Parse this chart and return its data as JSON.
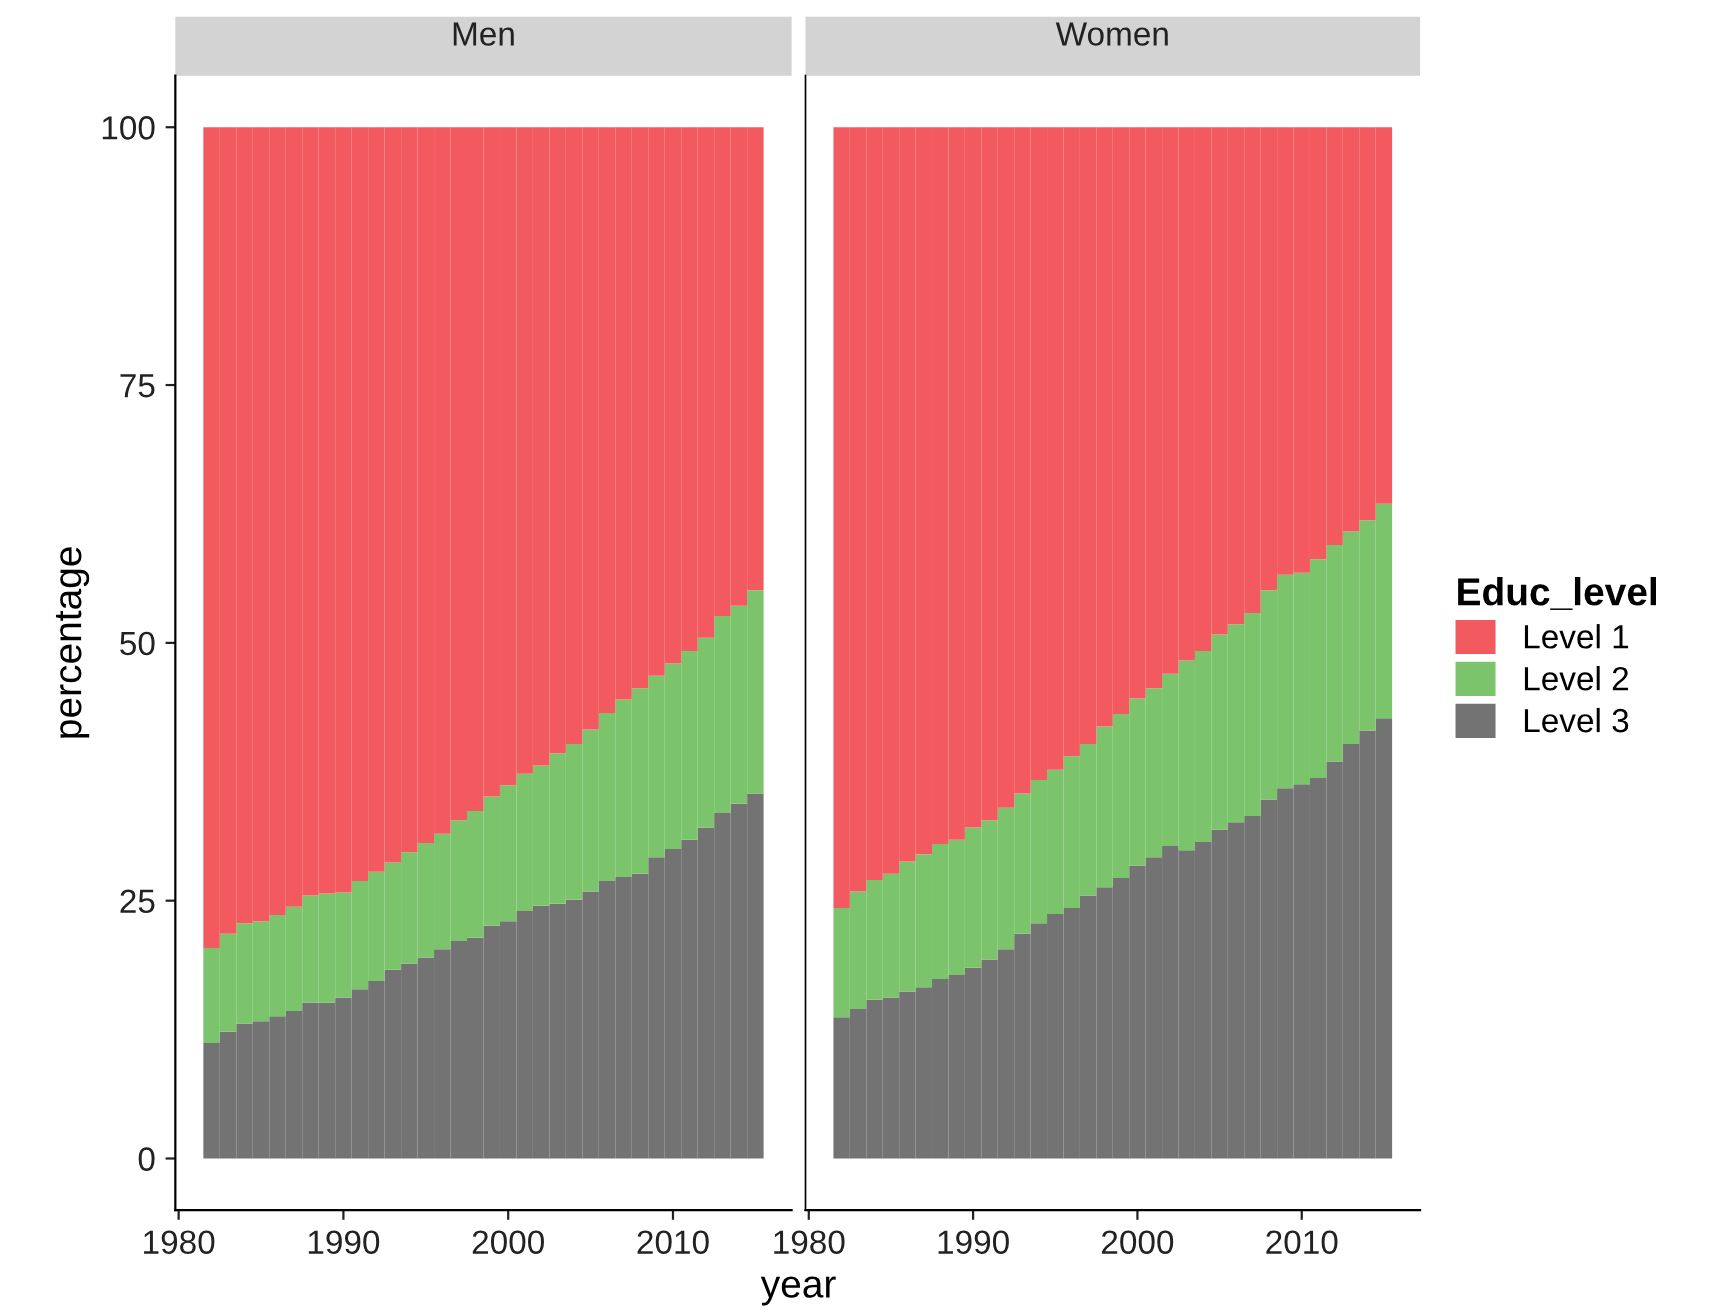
{
  "chart_data": [
    {
      "type": "bar",
      "title": "Men",
      "stacked": true,
      "xlabel": "year",
      "ylabel": "percentage",
      "legend": "right",
      "legend_title": "Educ_level",
      "x": [
        1982,
        1983,
        1984,
        1985,
        1986,
        1987,
        1988,
        1989,
        1990,
        1991,
        1992,
        1993,
        1994,
        1995,
        1996,
        1997,
        1998,
        1999,
        2000,
        2001,
        2002,
        2003,
        2004,
        2005,
        2006,
        2007,
        2008,
        2009,
        2010,
        2011,
        2012,
        2013,
        2014,
        2015
      ],
      "xlim": [
        1979.8,
        2017.2
      ],
      "xticks": [
        1980,
        1990,
        2000,
        2010
      ],
      "ylim": [
        -5,
        105
      ],
      "yticks": [
        0,
        25,
        50,
        75,
        100
      ],
      "grid": false,
      "series": [
        {
          "name": "Level 3",
          "color": "#737373",
          "values": [
            11.2,
            12.3,
            13.1,
            13.3,
            13.8,
            14.3,
            15.1,
            15.1,
            15.6,
            16.4,
            17.2,
            18.3,
            18.9,
            19.5,
            20.3,
            21.1,
            21.4,
            22.6,
            23.0,
            24.0,
            24.5,
            24.7,
            25.1,
            25.9,
            26.9,
            27.3,
            27.6,
            29.2,
            30.0,
            30.9,
            32.1,
            33.5,
            34.4,
            35.4
          ]
        },
        {
          "name": "Level 2",
          "color": "#7bc46c",
          "values": [
            9.2,
            9.5,
            9.7,
            9.7,
            9.8,
            10.1,
            10.4,
            10.6,
            10.2,
            10.5,
            10.6,
            10.4,
            10.8,
            11.1,
            11.2,
            11.7,
            12.3,
            12.5,
            13.2,
            13.3,
            13.6,
            14.6,
            15.1,
            15.7,
            16.3,
            17.2,
            18.0,
            17.6,
            18.0,
            18.3,
            18.4,
            19.1,
            19.2,
            19.7
          ]
        },
        {
          "name": "Level 1",
          "color": "#f25a60",
          "values": [
            79.6,
            78.2,
            77.2,
            77.0,
            76.4,
            75.6,
            74.5,
            74.3,
            74.2,
            73.1,
            72.2,
            71.3,
            70.3,
            69.4,
            68.5,
            67.2,
            66.3,
            64.9,
            63.8,
            62.7,
            61.9,
            60.7,
            59.8,
            58.4,
            56.8,
            55.5,
            54.4,
            53.2,
            52.0,
            50.8,
            49.5,
            47.4,
            46.4,
            44.9
          ]
        }
      ]
    },
    {
      "type": "bar",
      "title": "Women",
      "stacked": true,
      "tick_labels": "x",
      "x": [
        1982,
        1983,
        1984,
        1985,
        1986,
        1987,
        1988,
        1989,
        1990,
        1991,
        1992,
        1993,
        1994,
        1995,
        1996,
        1997,
        1998,
        1999,
        2000,
        2001,
        2002,
        2003,
        2004,
        2005,
        2006,
        2007,
        2008,
        2009,
        2010,
        2011,
        2012,
        2013,
        2014,
        2015
      ],
      "xlim": [
        1979.8,
        2017.2
      ],
      "xticks": [
        1980,
        1990,
        2000,
        2010
      ],
      "ylim": [
        -5,
        105
      ],
      "yticks": [
        0,
        25,
        50,
        75,
        100
      ],
      "grid": false,
      "series": [
        {
          "color": "#737373",
          "values": [
            13.7,
            14.5,
            15.4,
            15.6,
            16.2,
            16.6,
            17.4,
            17.8,
            18.5,
            19.3,
            20.3,
            21.8,
            22.8,
            23.7,
            24.3,
            25.5,
            26.3,
            27.2,
            28.4,
            29.2,
            30.3,
            29.9,
            30.7,
            31.9,
            32.6,
            33.2,
            34.8,
            35.9,
            36.3,
            36.9,
            38.5,
            40.2,
            41.5,
            42.7
          ]
        },
        {
          "color": "#7bc46c",
          "values": [
            10.6,
            11.4,
            11.6,
            12.0,
            12.6,
            12.9,
            13.1,
            13.1,
            13.6,
            13.5,
            13.7,
            13.6,
            13.9,
            14.0,
            14.7,
            14.7,
            15.6,
            15.9,
            16.2,
            16.4,
            16.7,
            18.4,
            18.5,
            18.9,
            19.2,
            19.7,
            20.3,
            20.7,
            20.5,
            21.2,
            21.0,
            20.6,
            20.4,
            20.8
          ]
        },
        {
          "color": "#f25a60",
          "values": [
            75.7,
            74.1,
            73.0,
            72.4,
            71.2,
            70.5,
            69.5,
            69.1,
            67.9,
            67.2,
            66.0,
            64.6,
            63.3,
            62.3,
            61.0,
            59.8,
            58.1,
            56.9,
            55.4,
            54.4,
            53.0,
            51.7,
            50.8,
            49.2,
            48.2,
            47.1,
            44.9,
            43.4,
            43.2,
            41.9,
            40.5,
            39.2,
            38.1,
            36.5
          ]
        }
      ]
    }
  ]
}
